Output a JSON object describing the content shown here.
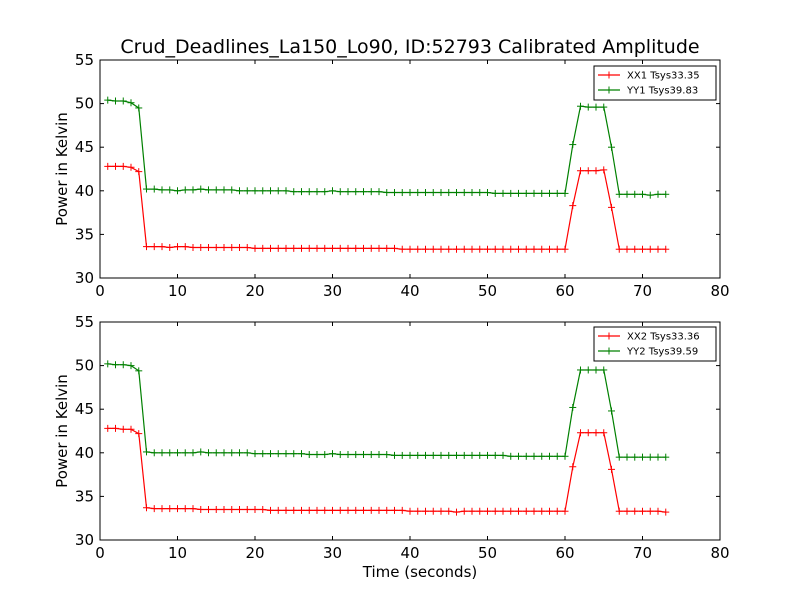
{
  "figure_title": "Crud_Deadlines_La150_Lo90, ID:52793 Calibrated Amplitude",
  "chart_data": [
    {
      "type": "line",
      "title": "Crud_Deadlines_La150_Lo90, ID:52793 Calibrated Amplitude",
      "xlabel": "",
      "ylabel": "Power in Kelvin",
      "xlim": [
        0,
        80
      ],
      "ylim": [
        30,
        55
      ],
      "xticks": [
        0,
        10,
        20,
        30,
        40,
        50,
        60,
        70,
        80
      ],
      "yticks": [
        30,
        35,
        40,
        45,
        50,
        55
      ],
      "grid": false,
      "legend_position": "top-right",
      "x": [
        1,
        2,
        3,
        4,
        5,
        6,
        7,
        8,
        9,
        10,
        11,
        12,
        13,
        14,
        15,
        16,
        17,
        18,
        19,
        20,
        21,
        22,
        23,
        24,
        25,
        26,
        27,
        28,
        29,
        30,
        31,
        32,
        33,
        34,
        35,
        36,
        37,
        38,
        39,
        40,
        41,
        42,
        43,
        44,
        45,
        46,
        47,
        48,
        49,
        50,
        51,
        52,
        53,
        54,
        55,
        56,
        57,
        58,
        59,
        60,
        61,
        62,
        63,
        64,
        65,
        66,
        67,
        68,
        69,
        70,
        71,
        72,
        73
      ],
      "series": [
        {
          "name": "XX1 Tsys33.35",
          "color": "#ff0000",
          "values": [
            42.8,
            42.8,
            42.8,
            42.7,
            42.2,
            33.6,
            33.6,
            33.6,
            33.5,
            33.6,
            33.6,
            33.5,
            33.5,
            33.5,
            33.5,
            33.5,
            33.5,
            33.5,
            33.5,
            33.4,
            33.4,
            33.4,
            33.4,
            33.4,
            33.4,
            33.4,
            33.4,
            33.4,
            33.4,
            33.4,
            33.4,
            33.4,
            33.4,
            33.4,
            33.4,
            33.4,
            33.4,
            33.4,
            33.3,
            33.3,
            33.3,
            33.3,
            33.3,
            33.3,
            33.3,
            33.3,
            33.3,
            33.3,
            33.3,
            33.3,
            33.3,
            33.3,
            33.3,
            33.3,
            33.3,
            33.3,
            33.3,
            33.3,
            33.3,
            33.3,
            38.3,
            42.3,
            42.3,
            42.3,
            42.4,
            38.1,
            33.3,
            33.3,
            33.3,
            33.3,
            33.3,
            33.3,
            33.3
          ]
        },
        {
          "name": "YY1 Tsys39.83",
          "color": "#008000",
          "values": [
            50.4,
            50.3,
            50.3,
            50.1,
            49.5,
            40.2,
            40.2,
            40.1,
            40.1,
            40.0,
            40.1,
            40.1,
            40.2,
            40.1,
            40.1,
            40.1,
            40.1,
            40.0,
            40.0,
            40.0,
            40.0,
            40.0,
            40.0,
            40.0,
            39.9,
            39.9,
            39.9,
            39.9,
            39.9,
            40.0,
            39.9,
            39.9,
            39.9,
            39.9,
            39.9,
            39.9,
            39.8,
            39.8,
            39.8,
            39.8,
            39.8,
            39.8,
            39.8,
            39.8,
            39.8,
            39.8,
            39.8,
            39.8,
            39.8,
            39.8,
            39.7,
            39.7,
            39.7,
            39.7,
            39.7,
            39.7,
            39.7,
            39.7,
            39.7,
            39.7,
            45.3,
            49.7,
            49.6,
            49.6,
            49.6,
            45.0,
            39.6,
            39.6,
            39.6,
            39.6,
            39.5,
            39.6,
            39.6
          ]
        }
      ]
    },
    {
      "type": "line",
      "title": "",
      "xlabel": "Time (seconds)",
      "ylabel": "Power in Kelvin",
      "xlim": [
        0,
        80
      ],
      "ylim": [
        30,
        55
      ],
      "xticks": [
        0,
        10,
        20,
        30,
        40,
        50,
        60,
        70,
        80
      ],
      "yticks": [
        30,
        35,
        40,
        45,
        50,
        55
      ],
      "grid": false,
      "legend_position": "top-right",
      "x": [
        1,
        2,
        3,
        4,
        5,
        6,
        7,
        8,
        9,
        10,
        11,
        12,
        13,
        14,
        15,
        16,
        17,
        18,
        19,
        20,
        21,
        22,
        23,
        24,
        25,
        26,
        27,
        28,
        29,
        30,
        31,
        32,
        33,
        34,
        35,
        36,
        37,
        38,
        39,
        40,
        41,
        42,
        43,
        44,
        45,
        46,
        47,
        48,
        49,
        50,
        51,
        52,
        53,
        54,
        55,
        56,
        57,
        58,
        59,
        60,
        61,
        62,
        63,
        64,
        65,
        66,
        67,
        68,
        69,
        70,
        71,
        72,
        73
      ],
      "series": [
        {
          "name": "XX2 Tsys33.36",
          "color": "#ff0000",
          "values": [
            42.8,
            42.8,
            42.7,
            42.7,
            42.2,
            33.7,
            33.6,
            33.6,
            33.6,
            33.6,
            33.6,
            33.6,
            33.5,
            33.5,
            33.5,
            33.5,
            33.5,
            33.5,
            33.5,
            33.5,
            33.5,
            33.4,
            33.4,
            33.4,
            33.4,
            33.4,
            33.4,
            33.4,
            33.4,
            33.4,
            33.4,
            33.4,
            33.4,
            33.4,
            33.4,
            33.4,
            33.4,
            33.4,
            33.4,
            33.3,
            33.3,
            33.3,
            33.3,
            33.3,
            33.3,
            33.2,
            33.3,
            33.3,
            33.3,
            33.3,
            33.3,
            33.3,
            33.3,
            33.3,
            33.3,
            33.3,
            33.3,
            33.3,
            33.3,
            33.3,
            38.4,
            42.3,
            42.3,
            42.3,
            42.3,
            38.1,
            33.3,
            33.3,
            33.3,
            33.3,
            33.3,
            33.3,
            33.2
          ]
        },
        {
          "name": "YY2 Tsys39.59",
          "color": "#008000",
          "values": [
            50.2,
            50.1,
            50.1,
            50.0,
            49.4,
            40.1,
            40.0,
            40.0,
            40.0,
            40.0,
            40.0,
            40.0,
            40.1,
            40.0,
            40.0,
            40.0,
            40.0,
            40.0,
            40.0,
            39.9,
            39.9,
            39.9,
            39.9,
            39.9,
            39.9,
            39.9,
            39.8,
            39.8,
            39.8,
            39.9,
            39.8,
            39.8,
            39.8,
            39.8,
            39.8,
            39.8,
            39.8,
            39.7,
            39.7,
            39.7,
            39.7,
            39.7,
            39.7,
            39.7,
            39.7,
            39.7,
            39.7,
            39.7,
            39.7,
            39.7,
            39.7,
            39.7,
            39.6,
            39.6,
            39.6,
            39.6,
            39.6,
            39.6,
            39.6,
            39.6,
            45.2,
            49.5,
            49.5,
            49.5,
            49.5,
            44.8,
            39.5,
            39.5,
            39.5,
            39.5,
            39.5,
            39.5,
            39.5
          ]
        }
      ]
    }
  ]
}
